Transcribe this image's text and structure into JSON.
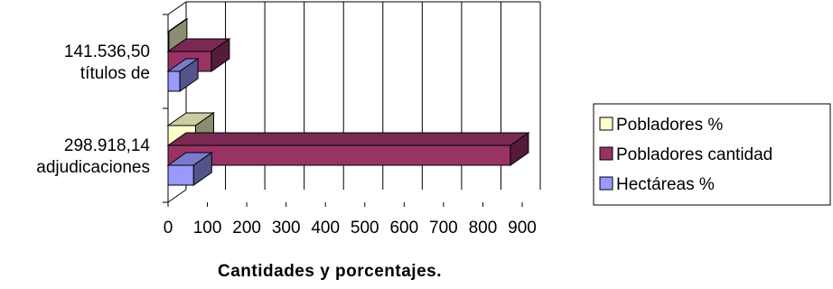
{
  "chart_data": {
    "type": "bar",
    "orientation": "horizontal",
    "style": "3d",
    "categories": [
      [
        "141.536,50",
        "títulos de"
      ],
      [
        "298.918,14",
        "adjudicaciones"
      ]
    ],
    "series": [
      {
        "name": "Pobladores %",
        "color": "#FFFFCC",
        "values": [
          2,
          70
        ]
      },
      {
        "name": "Pobladores cantidad",
        "color": "#993366",
        "values": [
          110,
          870
        ]
      },
      {
        "name": "Hectáreas %",
        "color": "#9999FF",
        "values": [
          30,
          65
        ]
      }
    ],
    "xlabel": "Cantidades y porcentajes.",
    "xlim": [
      0,
      900
    ],
    "xticks": [
      "0",
      "100",
      "200",
      "300",
      "400",
      "500",
      "600",
      "700",
      "800",
      "900"
    ],
    "grid": true,
    "legend": "right"
  }
}
